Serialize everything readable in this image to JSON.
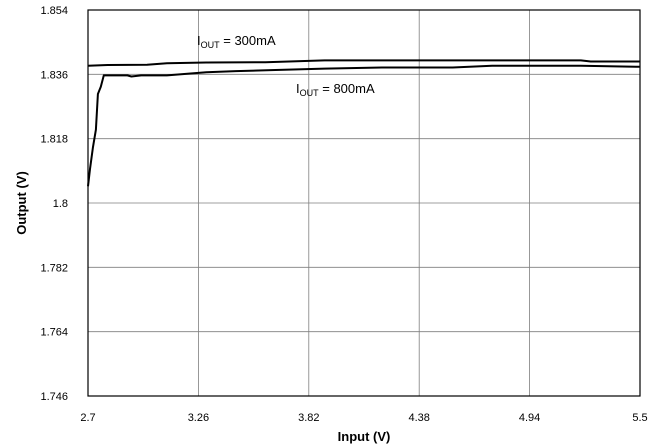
{
  "chart_data": {
    "type": "line",
    "xlabel": "Input (V)",
    "ylabel": "Output (V)",
    "xlim": [
      2.7,
      5.5
    ],
    "ylim": [
      1.746,
      1.854
    ],
    "x_ticks": [
      "2.7",
      "3.26",
      "3.82",
      "4.38",
      "4.94",
      "5.5"
    ],
    "y_ticks": [
      "1.854",
      "1.836",
      "1.818",
      "1.8",
      "1.782",
      "1.764",
      "1.746"
    ],
    "grid": true,
    "series": [
      {
        "name": "I_OUT = 300mA",
        "label_main": "I",
        "label_sub": "OUT",
        "label_rest": " = 300mA",
        "points": [
          [
            2.7,
            1.8384
          ],
          [
            2.8,
            1.8386
          ],
          [
            3.0,
            1.8387
          ],
          [
            3.1,
            1.8391
          ],
          [
            3.3,
            1.8393
          ],
          [
            3.6,
            1.8394
          ],
          [
            3.9,
            1.8399
          ],
          [
            4.2,
            1.8399
          ],
          [
            4.6,
            1.8399
          ],
          [
            5.2,
            1.8399
          ],
          [
            5.25,
            1.8396
          ],
          [
            5.5,
            1.8396
          ]
        ]
      },
      {
        "name": "I_OUT = 800mA",
        "label_main": "I",
        "label_sub": "OUT",
        "label_rest": " = 800mA",
        "points": [
          [
            2.7,
            1.8047
          ],
          [
            2.71,
            1.8095
          ],
          [
            2.725,
            1.8155
          ],
          [
            2.74,
            1.8205
          ],
          [
            2.75,
            1.8305
          ],
          [
            2.765,
            1.8325
          ],
          [
            2.78,
            1.8357
          ],
          [
            2.9,
            1.8357
          ],
          [
            2.92,
            1.8354
          ],
          [
            2.97,
            1.8357
          ],
          [
            3.1,
            1.8357
          ],
          [
            3.3,
            1.8366
          ],
          [
            3.45,
            1.8369
          ],
          [
            3.65,
            1.8372
          ],
          [
            3.9,
            1.8376
          ],
          [
            4.2,
            1.8379
          ],
          [
            4.55,
            1.8379
          ],
          [
            4.75,
            1.8384
          ],
          [
            5.2,
            1.8384
          ],
          [
            5.5,
            1.8381
          ]
        ]
      }
    ]
  }
}
